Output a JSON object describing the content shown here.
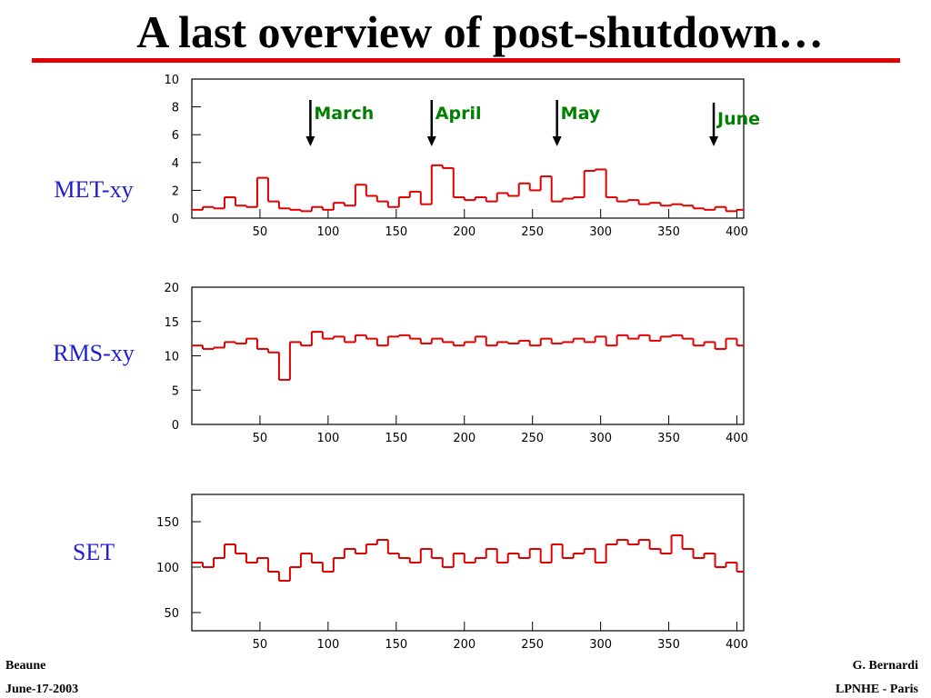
{
  "slide_title": "A last overview of post-shutdown…",
  "footer": {
    "left": [
      "Beaune",
      "June-17-2003"
    ],
    "right": [
      "G. Bernardi",
      "LPNHE - Paris"
    ]
  },
  "chart_data": [
    {
      "type": "step",
      "title": "MET-xy",
      "color": "#e00000",
      "x": [
        0,
        8,
        16,
        24,
        32,
        40,
        48,
        56,
        64,
        72,
        80,
        88,
        96,
        104,
        112,
        120,
        128,
        136,
        144,
        152,
        160,
        168,
        176,
        184,
        192,
        200,
        208,
        216,
        224,
        232,
        240,
        248,
        256,
        264,
        272,
        280,
        288,
        296,
        304,
        312,
        320,
        328,
        336,
        344,
        352,
        360,
        368,
        376,
        384,
        392,
        400
      ],
      "values": [
        0.6,
        0.8,
        0.7,
        1.5,
        0.9,
        0.8,
        2.9,
        1.2,
        0.7,
        0.6,
        0.5,
        0.8,
        0.6,
        1.1,
        0.9,
        2.4,
        1.6,
        1.2,
        0.8,
        1.5,
        1.9,
        1.0,
        3.8,
        3.6,
        1.5,
        1.3,
        1.5,
        1.2,
        1.8,
        1.6,
        2.5,
        2.0,
        3.0,
        1.2,
        1.4,
        1.5,
        3.4,
        3.5,
        1.5,
        1.2,
        1.3,
        1.0,
        1.1,
        0.9,
        1.0,
        0.9,
        0.7,
        0.6,
        0.8,
        0.5,
        0.6
      ],
      "xlim": [
        0,
        405
      ],
      "xticks": [
        50,
        100,
        150,
        200,
        250,
        300,
        350,
        400
      ],
      "ylim": [
        0,
        10
      ],
      "yticks": [
        0,
        2,
        4,
        6,
        8,
        10
      ],
      "annotations": [
        {
          "text": "March",
          "x": 87,
          "color": "#008000"
        },
        {
          "text": "April",
          "x": 176,
          "color": "#008000"
        },
        {
          "text": "May",
          "x": 268,
          "color": "#008000"
        },
        {
          "text": "June",
          "x": 383,
          "color": "#008000"
        }
      ]
    },
    {
      "type": "step",
      "title": "RMS-xy",
      "color": "#e00000",
      "x": [
        0,
        8,
        16,
        24,
        32,
        40,
        48,
        56,
        64,
        72,
        80,
        88,
        96,
        104,
        112,
        120,
        128,
        136,
        144,
        152,
        160,
        168,
        176,
        184,
        192,
        200,
        208,
        216,
        224,
        232,
        240,
        248,
        256,
        264,
        272,
        280,
        288,
        296,
        304,
        312,
        320,
        328,
        336,
        344,
        352,
        360,
        368,
        376,
        384,
        392,
        400
      ],
      "values": [
        11.5,
        11,
        11.2,
        12,
        11.8,
        12.5,
        11,
        10.5,
        6.5,
        12,
        11.5,
        13.5,
        12.5,
        12.8,
        12,
        13,
        12.5,
        11.5,
        12.8,
        13,
        12.5,
        11.8,
        12.5,
        12,
        11.5,
        12,
        12.8,
        11.5,
        12,
        11.8,
        12.2,
        11.5,
        12.5,
        11.8,
        12,
        12.5,
        12,
        12.8,
        11.5,
        13,
        12.5,
        13,
        12.2,
        12.8,
        13,
        12.5,
        11.5,
        12,
        11,
        12.5,
        11.5
      ],
      "xlim": [
        0,
        405
      ],
      "xticks": [
        50,
        100,
        150,
        200,
        250,
        300,
        350,
        400
      ],
      "ylim": [
        0,
        20
      ],
      "yticks": [
        0,
        5,
        10,
        15,
        20
      ]
    },
    {
      "type": "step",
      "title": "SET",
      "color": "#e00000",
      "x": [
        0,
        8,
        16,
        24,
        32,
        40,
        48,
        56,
        64,
        72,
        80,
        88,
        96,
        104,
        112,
        120,
        128,
        136,
        144,
        152,
        160,
        168,
        176,
        184,
        192,
        200,
        208,
        216,
        224,
        232,
        240,
        248,
        256,
        264,
        272,
        280,
        288,
        296,
        304,
        312,
        320,
        328,
        336,
        344,
        352,
        360,
        368,
        376,
        384,
        392,
        400
      ],
      "values": [
        105,
        100,
        110,
        125,
        115,
        105,
        110,
        95,
        85,
        100,
        115,
        105,
        95,
        110,
        120,
        115,
        125,
        130,
        115,
        110,
        105,
        120,
        110,
        100,
        115,
        105,
        110,
        120,
        105,
        115,
        110,
        120,
        105,
        125,
        110,
        115,
        120,
        105,
        125,
        130,
        125,
        130,
        120,
        115,
        135,
        120,
        110,
        115,
        100,
        105,
        95
      ],
      "xlim": [
        0,
        405
      ],
      "xticks": [
        50,
        100,
        150,
        200,
        250,
        300,
        350,
        400
      ],
      "ylim": [
        30,
        180
      ],
      "yticks": [
        50,
        100,
        150
      ]
    }
  ]
}
